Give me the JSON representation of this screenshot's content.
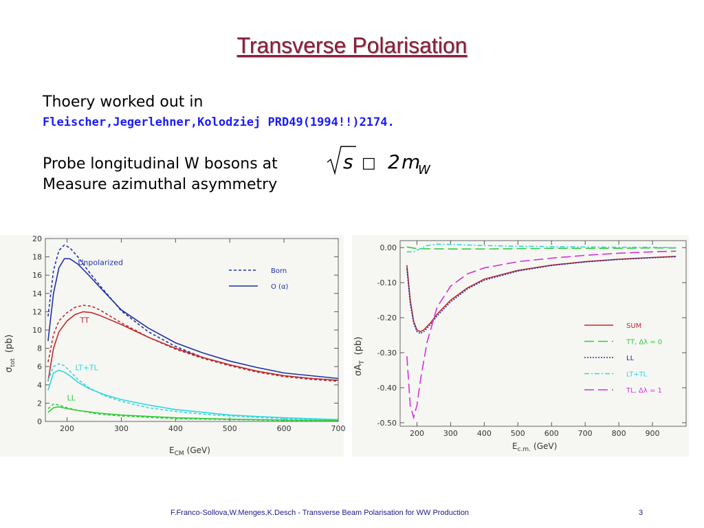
{
  "slide": {
    "title": "Transverse Polarisation",
    "line1": "Thoery worked out in",
    "reference": "Fleischer,Jegerlehner,Kolodziej PRD49(1994!!)2174.",
    "line2": "Probe longitudinal W bosons at",
    "line3": "Measure azimuthal asymmetry",
    "footer": "F.Franco-Sollova,W.Menges,K.Desch - Transverse Beam Polarisation for WW Production",
    "page_number": "3"
  },
  "formula": {
    "sqrt_var": "s",
    "relation_symbol": "□",
    "coefficient": "2",
    "mass": "m",
    "subscript": "W"
  },
  "colors": {
    "title": "#8b1c3a",
    "reference": "#1a1aff",
    "blue": "#1f2fa8",
    "red": "#c0282a",
    "cyan": "#2fd6e0",
    "green": "#2fcc38",
    "magenta": "#d62fd6",
    "plot_bg": "#f6f7f3"
  },
  "chart_data": [
    {
      "type": "line",
      "title": "",
      "xlabel": "E_CM (GeV)",
      "xlabel_main": "E",
      "xlabel_sub": "CM",
      "xlabel_unit": "(GeV)",
      "ylabel": "σ_tot (pb)",
      "ylabel_main": "σ",
      "ylabel_sub": "tot",
      "ylabel_unit": "(pb)",
      "xlim": [
        160,
        700
      ],
      "ylim": [
        0,
        20
      ],
      "xticks": [
        "200",
        "300",
        "400",
        "500",
        "600",
        "700"
      ],
      "yticks": [
        "0",
        "2",
        "4",
        "6",
        "8",
        "10",
        "12",
        "14",
        "16",
        "18",
        "20"
      ],
      "legend_position": "top-right",
      "legend": [
        {
          "label": "Born",
          "style": "dashed"
        },
        {
          "label": "O (α)",
          "style": "solid"
        }
      ],
      "annotations": [
        {
          "text": "Unpolarized",
          "x": 220,
          "y": 17.1,
          "color": "#1f2fa8"
        },
        {
          "text": "TT",
          "x": 224,
          "y": 10.8,
          "color": "#c0282a"
        },
        {
          "text": "LT+TL",
          "x": 215,
          "y": 5.6,
          "color": "#2fd6e0"
        },
        {
          "text": "LL",
          "x": 200,
          "y": 2.3,
          "color": "#2fcc38"
        }
      ],
      "series": [
        {
          "component": "Unpolarized",
          "variant": "Born",
          "style": "dashed",
          "color": "#1f2fa8",
          "x": [
            165,
            175,
            185,
            195,
            205,
            220,
            240,
            260,
            300,
            350,
            400,
            450,
            500,
            550,
            600,
            650,
            700
          ],
          "y": [
            11.5,
            16.5,
            18.7,
            19.3,
            19.0,
            18.0,
            16.4,
            14.9,
            12.1,
            9.8,
            8.2,
            7.0,
            6.1,
            5.5,
            5.0,
            4.7,
            4.5
          ]
        },
        {
          "component": "Unpolarized",
          "variant": "O(α)",
          "style": "solid",
          "color": "#1f2fa8",
          "x": [
            165,
            175,
            185,
            195,
            205,
            220,
            240,
            260,
            300,
            350,
            400,
            450,
            500,
            550,
            600,
            650,
            700
          ],
          "y": [
            8.8,
            14.0,
            16.8,
            17.8,
            17.8,
            17.2,
            16.0,
            14.7,
            12.2,
            10.2,
            8.6,
            7.5,
            6.6,
            5.9,
            5.3,
            5.0,
            4.7
          ]
        },
        {
          "component": "TT",
          "variant": "Born",
          "style": "dashed",
          "color": "#c0282a",
          "x": [
            165,
            175,
            185,
            200,
            215,
            230,
            245,
            260,
            300,
            350,
            400,
            450,
            500,
            550,
            600,
            650,
            700
          ],
          "y": [
            6.5,
            9.5,
            11.0,
            11.9,
            12.5,
            12.7,
            12.6,
            12.2,
            10.8,
            9.2,
            7.9,
            6.9,
            6.1,
            5.4,
            4.9,
            4.6,
            4.4
          ]
        },
        {
          "component": "TT",
          "variant": "O(α)",
          "style": "solid",
          "color": "#c0282a",
          "x": [
            165,
            175,
            185,
            200,
            215,
            230,
            245,
            260,
            300,
            350,
            400,
            450,
            500,
            550,
            600,
            650,
            700
          ],
          "y": [
            4.4,
            8.0,
            9.8,
            11.0,
            11.7,
            12.0,
            11.9,
            11.6,
            10.6,
            9.2,
            8.0,
            7.0,
            6.2,
            5.5,
            5.0,
            4.7,
            4.5
          ]
        },
        {
          "component": "LT+TL",
          "variant": "Born",
          "style": "dashed",
          "color": "#2fd6e0",
          "x": [
            165,
            175,
            185,
            195,
            205,
            220,
            240,
            270,
            300,
            350,
            400,
            450,
            500,
            600,
            700
          ],
          "y": [
            4.5,
            6.0,
            6.3,
            6.1,
            5.5,
            4.6,
            3.7,
            2.8,
            2.2,
            1.5,
            1.1,
            0.8,
            0.6,
            0.3,
            0.2
          ]
        },
        {
          "component": "LT+TL",
          "variant": "O(α)",
          "style": "solid",
          "color": "#2fd6e0",
          "x": [
            165,
            175,
            185,
            195,
            205,
            220,
            240,
            270,
            300,
            350,
            400,
            450,
            500,
            600,
            700
          ],
          "y": [
            3.4,
            5.3,
            5.6,
            5.4,
            5.0,
            4.3,
            3.6,
            2.9,
            2.4,
            1.8,
            1.3,
            1.0,
            0.7,
            0.4,
            0.2
          ]
        },
        {
          "component": "LL",
          "variant": "Born",
          "style": "dashed",
          "color": "#2fcc38",
          "x": [
            165,
            175,
            185,
            200,
            220,
            260,
            300,
            400,
            500,
            600,
            700
          ],
          "y": [
            1.4,
            1.9,
            1.8,
            1.5,
            1.2,
            0.8,
            0.6,
            0.3,
            0.2,
            0.1,
            0.05
          ]
        },
        {
          "component": "LL",
          "variant": "O(α)",
          "style": "solid",
          "color": "#2fcc38",
          "x": [
            165,
            175,
            185,
            200,
            220,
            260,
            300,
            400,
            500,
            600,
            700
          ],
          "y": [
            1.0,
            1.5,
            1.6,
            1.4,
            1.2,
            0.9,
            0.7,
            0.4,
            0.25,
            0.15,
            0.1
          ]
        }
      ]
    },
    {
      "type": "line",
      "title": "",
      "xlabel": "E c.m. (GeV)",
      "xlabel_main": "E",
      "xlabel_sub": "c.m.",
      "xlabel_unit": "(GeV)",
      "ylabel": "σA_T (pb)",
      "ylabel_main": "σA",
      "ylabel_sub": "T",
      "ylabel_unit": "(pb)",
      "xlim": [
        150,
        1000
      ],
      "ylim": [
        -0.51,
        0.02
      ],
      "xticks": [
        "200",
        "300",
        "400",
        "500",
        "600",
        "700",
        "800",
        "900"
      ],
      "yticks": [
        "0.00",
        "-0.10",
        "-0.20",
        "-0.30",
        "-0.40",
        "-0.50"
      ],
      "legend_position": "bottom-right",
      "legend": [
        {
          "label": "SUM",
          "style": "solid",
          "color": "#c0282a"
        },
        {
          "label": "TT, Δλ = 0",
          "style": "long-dash",
          "color": "#2fcc38"
        },
        {
          "label": "LL",
          "style": "dotted",
          "color": "#1f2fa8"
        },
        {
          "label": "LT+TL",
          "style": "dash-dot",
          "color": "#2fd6e0"
        },
        {
          "label": "TL, Δλ = 1",
          "style": "long-dash",
          "color": "#d62fd6"
        }
      ],
      "series": [
        {
          "component": "SUM",
          "style": "solid",
          "color": "#c0282a",
          "x": [
            170,
            180,
            190,
            200,
            210,
            220,
            240,
            260,
            300,
            350,
            400,
            500,
            600,
            700,
            800,
            900,
            970
          ],
          "y": [
            -0.05,
            -0.15,
            -0.21,
            -0.235,
            -0.24,
            -0.235,
            -0.215,
            -0.19,
            -0.15,
            -0.115,
            -0.09,
            -0.065,
            -0.05,
            -0.04,
            -0.033,
            -0.028,
            -0.025
          ]
        },
        {
          "component": "LL",
          "style": "dotted",
          "color": "#1f2fa8",
          "x": [
            170,
            180,
            190,
            200,
            210,
            220,
            240,
            260,
            300,
            350,
            400,
            500,
            600,
            700,
            800,
            900,
            970
          ],
          "y": [
            -0.06,
            -0.16,
            -0.215,
            -0.24,
            -0.245,
            -0.24,
            -0.22,
            -0.195,
            -0.155,
            -0.118,
            -0.093,
            -0.067,
            -0.051,
            -0.041,
            -0.034,
            -0.029,
            -0.026
          ]
        },
        {
          "component": "TT, Δλ = 0",
          "style": "long-dash",
          "color": "#2fcc38",
          "x": [
            170,
            200,
            300,
            400,
            500,
            600,
            700,
            800,
            900,
            970
          ],
          "y": [
            0.002,
            -0.003,
            -0.004,
            -0.004,
            -0.003,
            -0.002,
            -0.002,
            -0.002,
            -0.001,
            -0.001
          ]
        },
        {
          "component": "LT+TL",
          "style": "dash-dot",
          "color": "#2fd6e0",
          "x": [
            170,
            190,
            210,
            230,
            260,
            300,
            400,
            500,
            600,
            700,
            800,
            900,
            970
          ],
          "y": [
            -0.012,
            -0.012,
            -0.003,
            0.006,
            0.01,
            0.009,
            0.006,
            0.004,
            0.003,
            0.002,
            0.001,
            0.001,
            0.0
          ]
        },
        {
          "component": "TL, Δλ = 1",
          "style": "long-dash",
          "color": "#d62fd6",
          "x": [
            170,
            180,
            190,
            200,
            210,
            230,
            260,
            300,
            350,
            400,
            500,
            600,
            700,
            800,
            900,
            970
          ],
          "y": [
            -0.31,
            -0.45,
            -0.485,
            -0.45,
            -0.38,
            -0.27,
            -0.17,
            -0.11,
            -0.075,
            -0.058,
            -0.04,
            -0.03,
            -0.022,
            -0.016,
            -0.012,
            -0.01
          ]
        }
      ]
    }
  ]
}
